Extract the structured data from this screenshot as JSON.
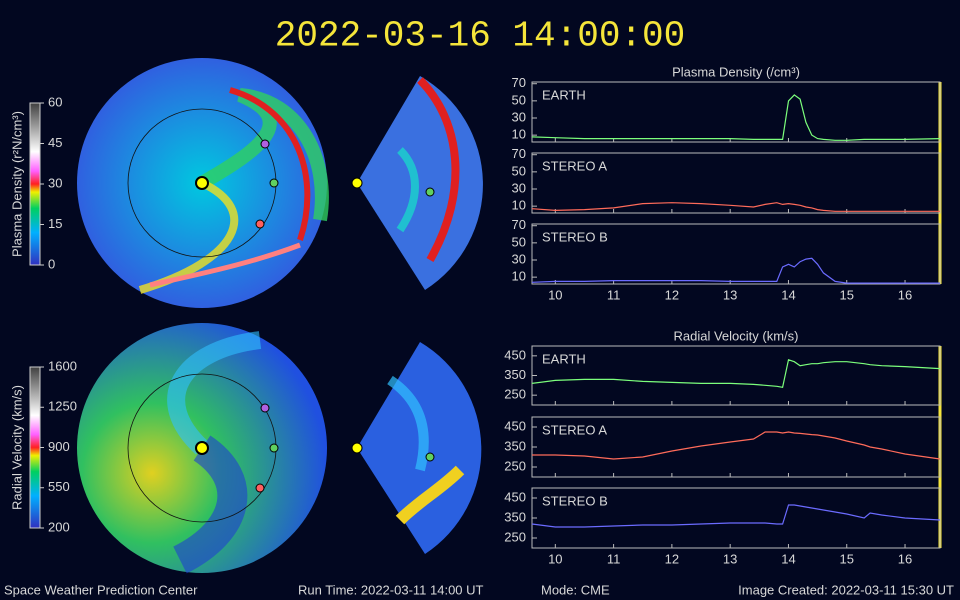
{
  "header": {
    "timestamp": "2022-03-16 14:00:00"
  },
  "colorbars": [
    {
      "title": "Plasma Density (r²N/cm³)",
      "range": [
        0,
        60
      ],
      "ticks": [
        0,
        15,
        30,
        45,
        60
      ]
    },
    {
      "title": "Radial Velocity (km/s)",
      "range": [
        200,
        1600
      ],
      "ticks": [
        200,
        550,
        900,
        1250,
        1600
      ]
    }
  ],
  "chart_data": [
    {
      "type": "line",
      "title": "Plasma Density (/cm³)",
      "x": [
        9.6,
        10,
        10.5,
        11,
        11.5,
        12,
        12.5,
        13,
        13.4,
        13.6,
        13.8,
        13.9,
        14.0,
        14.1,
        14.2,
        14.3,
        14.4,
        14.5,
        14.6,
        14.8,
        15,
        15.3,
        15.4,
        15.6,
        16,
        16.6
      ],
      "xlim": [
        9.6,
        16.6
      ],
      "xticks": [
        10,
        11,
        12,
        13,
        14,
        15,
        16
      ],
      "series": [
        {
          "name": "EARTH",
          "color": "#7cff7c",
          "ylim": [
            2,
            72
          ],
          "yticks": [
            10,
            30,
            50,
            70
          ],
          "values": [
            8,
            7,
            6,
            6,
            6,
            6,
            6,
            6,
            5,
            5,
            5,
            5,
            50,
            57,
            52,
            25,
            10,
            6,
            5,
            4,
            4,
            5,
            5,
            5,
            5,
            6
          ]
        },
        {
          "name": "STEREO A",
          "color": "#ff6b5a",
          "ylim": [
            2,
            72
          ],
          "yticks": [
            10,
            30,
            50,
            70
          ],
          "values": [
            7,
            5,
            6,
            8,
            13,
            14,
            13,
            11,
            9,
            12,
            14,
            12,
            13,
            12,
            11,
            9,
            8,
            6,
            5,
            4,
            4,
            4,
            4,
            4,
            4,
            4
          ]
        },
        {
          "name": "STEREO B",
          "color": "#6b6bff",
          "ylim": [
            2,
            72
          ],
          "yticks": [
            10,
            30,
            50,
            70
          ],
          "values": [
            4,
            5,
            5,
            6,
            6,
            6,
            6,
            5,
            5,
            5,
            5,
            22,
            25,
            22,
            28,
            31,
            32,
            25,
            15,
            5,
            3,
            3,
            3,
            3,
            3,
            3
          ]
        }
      ]
    },
    {
      "type": "line",
      "title": "Radial Velocity (km/s)",
      "x": [
        9.6,
        10,
        10.5,
        11,
        11.5,
        12,
        12.5,
        13,
        13.4,
        13.6,
        13.8,
        13.9,
        14.0,
        14.1,
        14.2,
        14.3,
        14.4,
        14.5,
        14.6,
        14.8,
        15,
        15.3,
        15.4,
        15.6,
        16,
        16.6
      ],
      "xlim": [
        9.6,
        16.6
      ],
      "xticks": [
        10,
        11,
        12,
        13,
        14,
        15,
        16
      ],
      "series": [
        {
          "name": "EARTH",
          "color": "#7cff7c",
          "ylim": [
            200,
            500
          ],
          "yticks": [
            250,
            350,
            450
          ],
          "values": [
            310,
            325,
            330,
            330,
            320,
            315,
            310,
            310,
            305,
            300,
            295,
            290,
            430,
            420,
            400,
            405,
            410,
            410,
            415,
            420,
            420,
            410,
            405,
            400,
            395,
            385
          ]
        },
        {
          "name": "STEREO A",
          "color": "#ff6b5a",
          "ylim": [
            200,
            500
          ],
          "yticks": [
            250,
            350,
            450
          ],
          "values": [
            310,
            310,
            305,
            290,
            300,
            330,
            355,
            375,
            390,
            425,
            425,
            420,
            425,
            420,
            418,
            415,
            412,
            410,
            405,
            395,
            380,
            360,
            350,
            340,
            315,
            290
          ]
        },
        {
          "name": "STEREO B",
          "color": "#6b6bff",
          "ylim": [
            200,
            500
          ],
          "yticks": [
            250,
            350,
            450
          ],
          "values": [
            320,
            305,
            305,
            310,
            315,
            315,
            320,
            325,
            325,
            325,
            320,
            320,
            415,
            415,
            410,
            405,
            400,
            395,
            390,
            380,
            370,
            350,
            375,
            365,
            350,
            340
          ]
        }
      ]
    }
  ],
  "footer": {
    "org": "Space Weather Prediction Center",
    "run_time": "Run Time: 2022-03-11 14:00 UT",
    "mode": "Mode: CME",
    "created": "Image Created: 2022-03-11 15:30 UT"
  }
}
